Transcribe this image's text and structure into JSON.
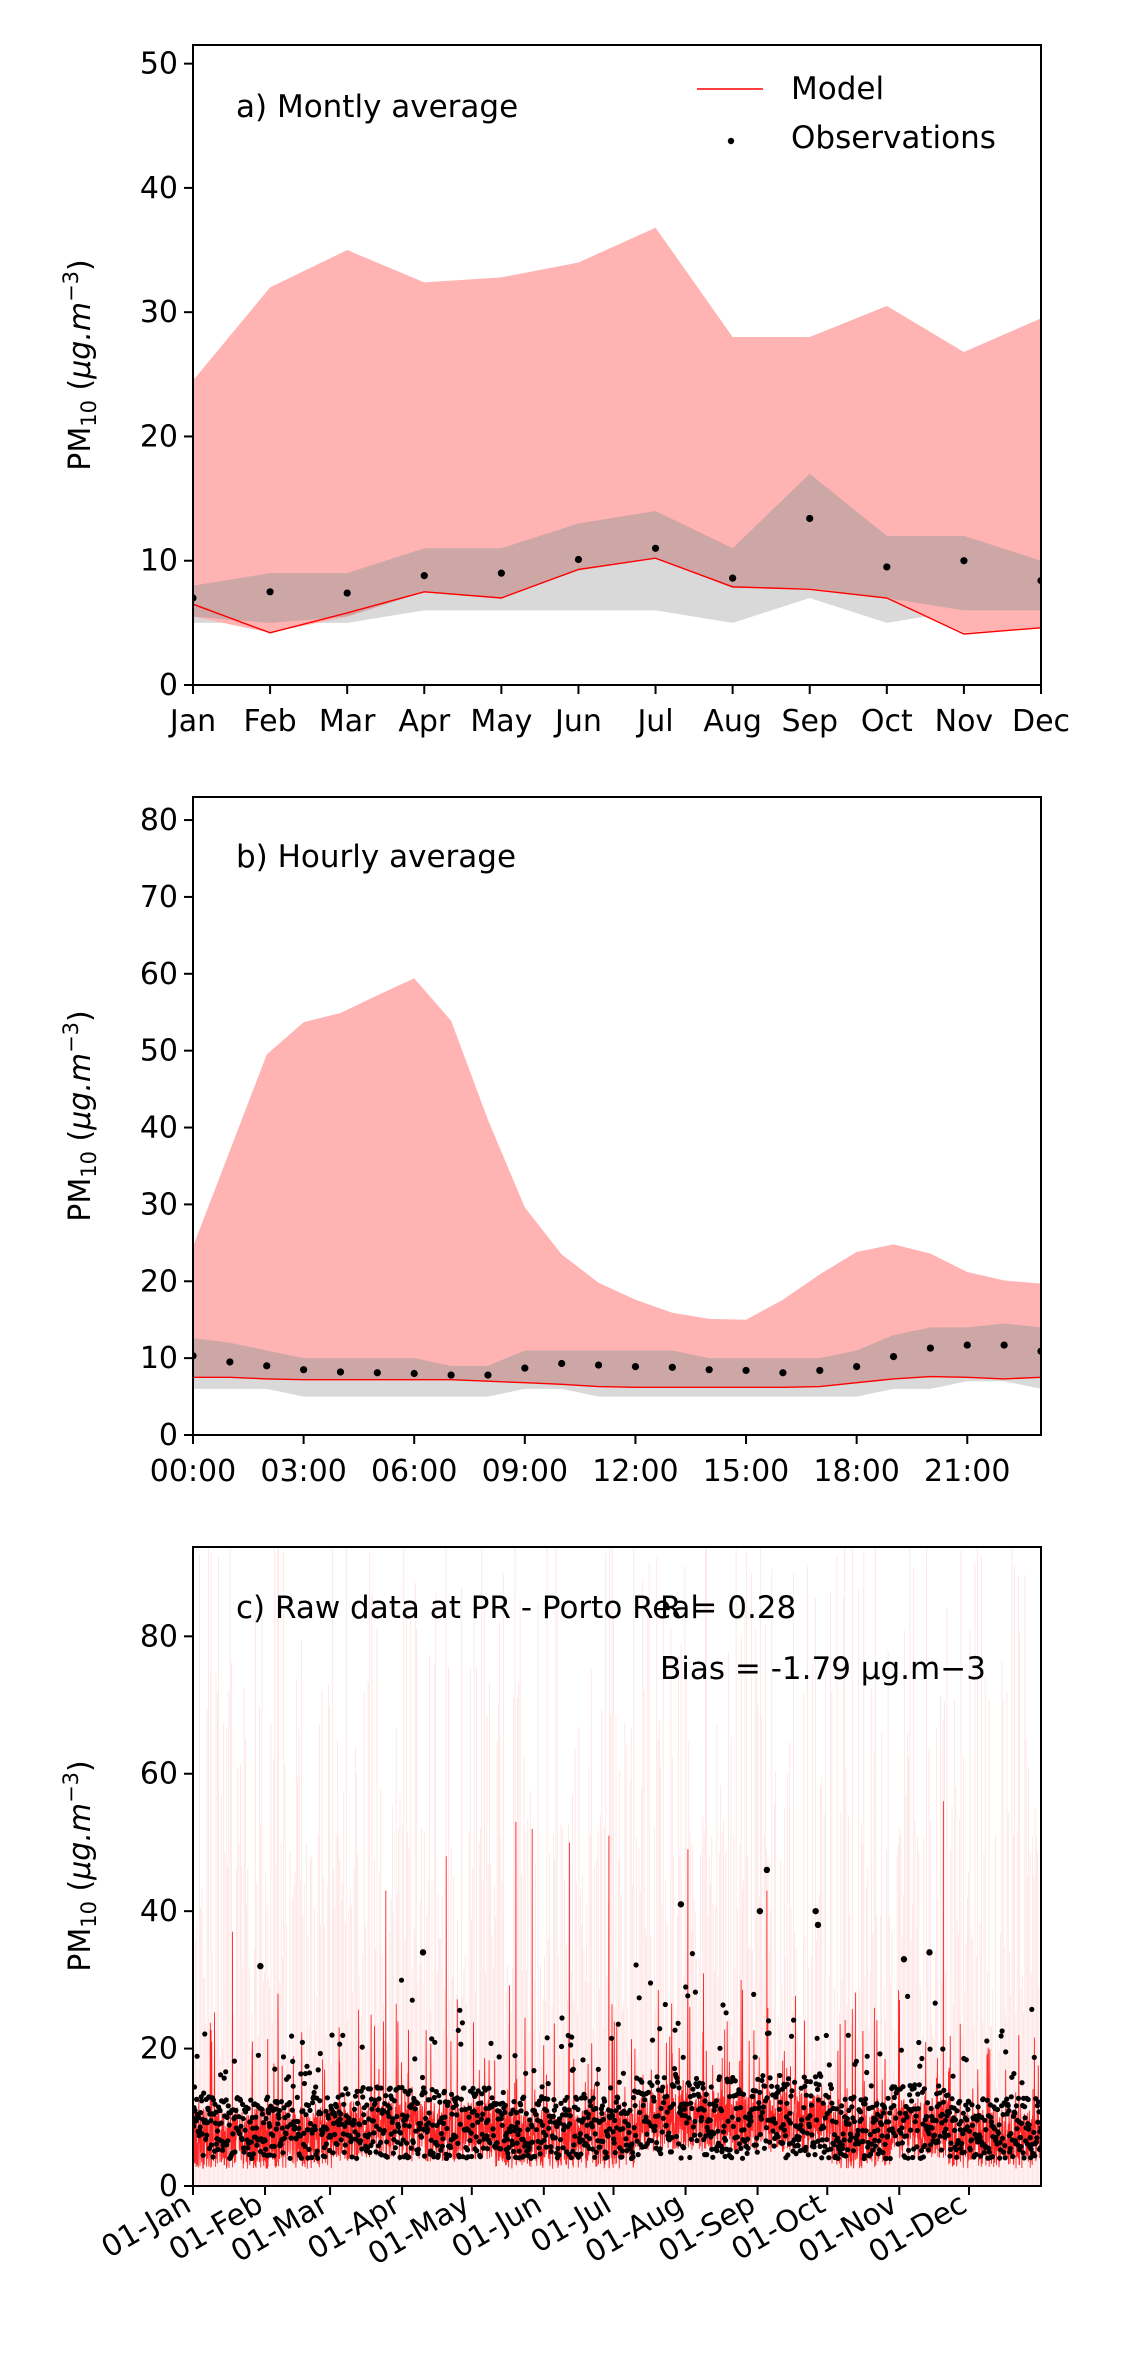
{
  "chart_data": [
    {
      "type": "area",
      "annotation": "a) Montly average",
      "ylabel": "PM10 (μg.m−3)",
      "ylim": [
        0,
        51.5
      ],
      "yticks": [
        0,
        10,
        20,
        30,
        40,
        50
      ],
      "xticks": [
        "Jan",
        "Feb",
        "Mar",
        "Apr",
        "May",
        "Jun",
        "Jul",
        "Aug",
        "Sep",
        "Oct",
        "Nov",
        "Dec"
      ],
      "legend": {
        "placement": "top-right",
        "entries": [
          "Model",
          "Observations"
        ]
      },
      "x": [
        1,
        2,
        3,
        4,
        5,
        6,
        7,
        8,
        9,
        10,
        11,
        12
      ],
      "model_range": {
        "lower": [
          5.5,
          4.2,
          5.5,
          7.5,
          7.0,
          9.2,
          10.2,
          7.8,
          7.8,
          7.0,
          4.2,
          4.6
        ],
        "upper": [
          24.5,
          32.0,
          35.0,
          32.4,
          32.8,
          34.0,
          36.8,
          28.0,
          28.0,
          30.5,
          26.8,
          29.5
        ]
      },
      "obs_range": {
        "lower": [
          5.0,
          5.0,
          5.0,
          6.0,
          6.0,
          6.0,
          6.0,
          5.0,
          7.0,
          5.0,
          6.0,
          6.0
        ],
        "upper": [
          8.0,
          9.0,
          9.0,
          11.0,
          11.0,
          13.0,
          14.0,
          11.0,
          17.0,
          12.0,
          12.0,
          10.0
        ]
      },
      "model": [
        6.5,
        4.2,
        5.8,
        7.5,
        7.0,
        9.3,
        10.2,
        7.9,
        7.7,
        7.0,
        4.1,
        4.6
      ],
      "observations": [
        7.0,
        7.5,
        7.4,
        8.8,
        9.0,
        10.1,
        11.0,
        8.6,
        13.4,
        9.5,
        10.0,
        8.4
      ]
    },
    {
      "type": "area",
      "annotation": "b) Hourly average",
      "ylabel": "PM10 (μg.m−3)",
      "ylim": [
        0,
        83
      ],
      "yticks": [
        0,
        10,
        20,
        30,
        40,
        50,
        60,
        70,
        80
      ],
      "xticks": [
        "00:00",
        "03:00",
        "06:00",
        "09:00",
        "12:00",
        "15:00",
        "18:00",
        "21:00"
      ],
      "x": [
        0,
        1,
        2,
        3,
        4,
        5,
        6,
        7,
        8,
        9,
        10,
        11,
        12,
        13,
        14,
        15,
        16,
        17,
        18,
        19,
        20,
        21,
        22,
        23
      ],
      "model_range": {
        "lower": [
          7.5,
          7.5,
          7.3,
          7.2,
          7.2,
          7.2,
          7.2,
          7.2,
          7.0,
          6.8,
          6.6,
          6.3,
          6.2,
          6.2,
          6.2,
          6.2,
          6.2,
          6.3,
          6.8,
          7.3,
          7.6,
          7.5,
          7.3,
          7.5
        ],
        "upper": [
          24.5,
          37.0,
          49.5,
          53.7,
          54.9,
          57.2,
          59.4,
          53.9,
          41.0,
          29.6,
          23.5,
          19.8,
          17.6,
          15.9,
          15.1,
          15.0,
          17.6,
          20.9,
          23.8,
          24.8,
          23.6,
          21.2,
          20.1,
          19.7
        ]
      },
      "obs_range": {
        "lower": [
          6.0,
          6.0,
          6.0,
          5.0,
          5.0,
          5.0,
          5.0,
          5.0,
          5.0,
          6.0,
          6.0,
          5.0,
          5.0,
          5.0,
          5.0,
          5.0,
          5.0,
          5.0,
          5.0,
          6.0,
          6.0,
          7.0,
          7.0,
          6.0
        ],
        "upper": [
          12.6,
          12.0,
          11.0,
          10.0,
          10.0,
          10.0,
          10.0,
          9.0,
          9.0,
          11.0,
          11.0,
          11.0,
          11.0,
          11.0,
          10.0,
          10.0,
          10.0,
          10.0,
          11.0,
          13.0,
          14.0,
          14.0,
          14.5,
          14.0
        ]
      },
      "model": [
        7.5,
        7.5,
        7.3,
        7.2,
        7.2,
        7.2,
        7.2,
        7.2,
        7.0,
        6.8,
        6.6,
        6.3,
        6.2,
        6.2,
        6.2,
        6.2,
        6.2,
        6.3,
        6.8,
        7.3,
        7.6,
        7.5,
        7.3,
        7.5
      ],
      "observations": [
        10.3,
        9.5,
        9.0,
        8.5,
        8.2,
        8.1,
        8.0,
        7.8,
        7.8,
        8.7,
        9.3,
        9.1,
        8.9,
        8.8,
        8.5,
        8.4,
        8.1,
        8.4,
        8.9,
        10.2,
        11.3,
        11.7,
        11.7,
        10.9
      ]
    },
    {
      "type": "line",
      "annotation": "c) Raw data at PR - Porto Real",
      "stats": {
        "r": "R = 0.28",
        "bias": "Bias = -1.79 μg.m−3"
      },
      "ylabel": "PM10 (μg.m−3)",
      "ylim": [
        0,
        93
      ],
      "yticks": [
        0,
        20,
        40,
        60,
        80
      ],
      "xticks": [
        "01-Jan",
        "01-Feb",
        "01-Mar",
        "01-Apr",
        "01-May",
        "01-Jun",
        "01-Jul",
        "01-Aug",
        "01-Sep",
        "01-Oct",
        "01-Nov",
        "01-Dec"
      ],
      "xrange": [
        "01-Jan",
        "31-Dec"
      ],
      "series": [
        {
          "name": "Model",
          "description": "hourly values, dense red line"
        },
        {
          "name": "Observations",
          "description": "hourly values, black dots"
        }
      ],
      "peaks_model": [
        {
          "x": "18-Jan",
          "y": 37
        },
        {
          "x": "25-Mar",
          "y": 43
        },
        {
          "x": "20-Apr",
          "y": 48
        },
        {
          "x": "20-May",
          "y": 53
        },
        {
          "x": "27-May",
          "y": 52
        },
        {
          "x": "12-Jun",
          "y": 50
        },
        {
          "x": "29-Jun",
          "y": 51
        },
        {
          "x": "02-Aug",
          "y": 49
        },
        {
          "x": "05-Sep",
          "y": 43
        },
        {
          "x": "20-Nov",
          "y": 56
        }
      ],
      "peaks_obs": [
        {
          "x": "30-Jan",
          "y": 32
        },
        {
          "x": "10-Apr",
          "y": 34
        },
        {
          "x": "30-Jul",
          "y": 41
        },
        {
          "x": "02-Sep",
          "y": 40
        },
        {
          "x": "05-Sep",
          "y": 46
        },
        {
          "x": "26-Sep",
          "y": 40
        },
        {
          "x": "27-Sep",
          "y": 38
        },
        {
          "x": "14-Nov",
          "y": 34
        },
        {
          "x": "03-Nov",
          "y": 33
        }
      ]
    }
  ],
  "colors": {
    "model_band": "#ffb0b0",
    "obs_band": "#d9d9d9",
    "overlap_band": "#cda6a6",
    "model_line": "#ff0000",
    "observation_dot": "#000000"
  }
}
